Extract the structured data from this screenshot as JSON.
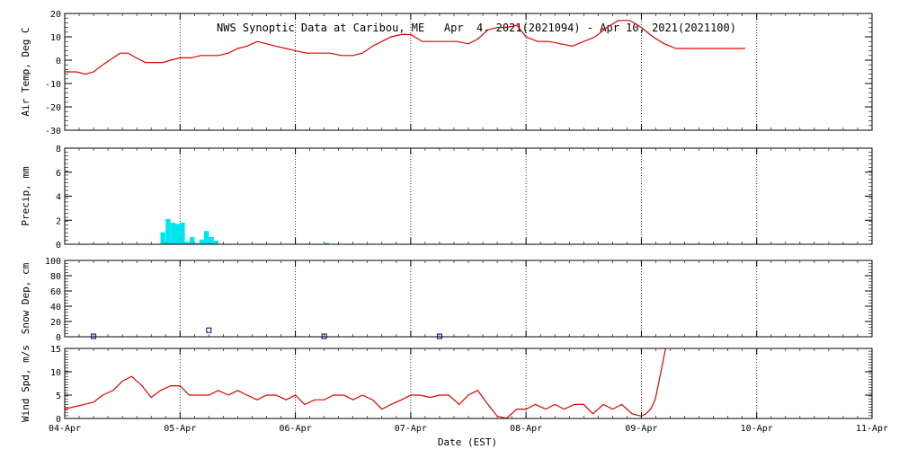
{
  "chart_data": {
    "title": "NWS Synoptic Data at Caribou, ME   Apr  4, 2021(2021094) - Apr 10, 2021(2021100)",
    "xlabel": "Date (EST)",
    "x_ticks": [
      "04-Apr",
      "05-Apr",
      "06-Apr",
      "07-Apr",
      "08-Apr",
      "09-Apr",
      "10-Apr",
      "11-Apr"
    ],
    "x_range_days": [
      0,
      7
    ],
    "panels": [
      {
        "type": "line",
        "ylabel": "Air Temp, Deg C",
        "ylim": [
          -30,
          20
        ],
        "y_ticks": [
          20,
          10,
          0,
          -10,
          -20,
          -30
        ],
        "color": "#e00000",
        "x": [
          0.0,
          0.1,
          0.18,
          0.25,
          0.33,
          0.42,
          0.48,
          0.55,
          0.62,
          0.7,
          0.78,
          0.85,
          0.92,
          1.0,
          1.1,
          1.18,
          1.25,
          1.33,
          1.42,
          1.5,
          1.58,
          1.67,
          1.75,
          1.83,
          1.92,
          2.0,
          2.1,
          2.2,
          2.3,
          2.4,
          2.5,
          2.58,
          2.67,
          2.75,
          2.83,
          2.92,
          3.0,
          3.1,
          3.2,
          3.3,
          3.4,
          3.5,
          3.58,
          3.67,
          3.75,
          3.83,
          3.92,
          4.0,
          4.1,
          4.2,
          4.3,
          4.4,
          4.5,
          4.6,
          4.7,
          4.8,
          4.9,
          5.0,
          5.1,
          5.2,
          5.3,
          5.4,
          5.5,
          5.6,
          5.7,
          5.8,
          5.9
        ],
        "y": [
          -5,
          -5,
          -6,
          -5,
          -2,
          1,
          3,
          3,
          1,
          -1,
          -1,
          -1,
          0,
          1,
          1,
          2,
          2,
          2,
          3,
          5,
          6,
          8,
          7,
          6,
          5,
          4,
          3,
          3,
          3,
          2,
          2,
          3,
          6,
          8,
          10,
          11,
          11,
          8,
          8,
          8,
          8,
          7,
          9,
          13,
          14,
          14,
          15,
          10,
          8,
          8,
          7,
          6,
          8,
          10,
          14,
          17,
          17,
          14,
          10,
          7,
          5,
          5,
          5,
          5,
          5,
          5,
          5
        ]
      },
      {
        "type": "bar",
        "ylabel": "Precip, mm",
        "ylim": [
          0,
          8
        ],
        "y_ticks": [
          8,
          6,
          4,
          2,
          0
        ],
        "color": "#00e5ee",
        "bar_width_days": 0.042,
        "x": [
          0.83,
          0.875,
          0.917,
          0.958,
          1.0,
          1.042,
          1.083,
          1.125,
          1.167,
          1.208,
          1.25,
          1.292,
          1.333,
          1.375,
          1.417,
          1.458,
          1.5,
          1.542,
          1.583,
          1.625,
          1.667,
          1.708,
          1.75,
          1.792,
          1.833,
          1.875,
          1.917,
          1.958,
          2.0,
          2.042,
          2.083,
          2.125,
          2.167,
          2.208,
          2.25,
          2.292,
          2.333,
          2.375,
          2.417,
          2.458,
          2.5
        ],
        "values": [
          1.0,
          2.1,
          1.8,
          1.7,
          1.8,
          0.2,
          0.6,
          0.1,
          0.4,
          1.1,
          0.6,
          0.3,
          0,
          0,
          0,
          0,
          0,
          0,
          0,
          0,
          0,
          0,
          0,
          0,
          0,
          0,
          0,
          0,
          0,
          0,
          0,
          0,
          0,
          0,
          0.1,
          0,
          0,
          0,
          0,
          0,
          0
        ]
      },
      {
        "type": "scatter",
        "ylabel": "Snow Dep, cm",
        "ylim": [
          0,
          100
        ],
        "y_ticks": [
          100,
          80,
          60,
          40,
          20,
          0
        ],
        "color": "#00008b",
        "x": [
          0.25,
          1.25,
          2.25,
          3.25
        ],
        "y": [
          0,
          8,
          0,
          0
        ]
      },
      {
        "type": "line",
        "ylabel": "Wind Spd, m/s",
        "ylim": [
          0,
          15
        ],
        "y_ticks": [
          15,
          10,
          5,
          0
        ],
        "color": "#e00000",
        "x": [
          0.0,
          0.08,
          0.17,
          0.25,
          0.33,
          0.42,
          0.5,
          0.58,
          0.67,
          0.75,
          0.83,
          0.92,
          1.0,
          1.08,
          1.17,
          1.25,
          1.33,
          1.42,
          1.5,
          1.58,
          1.67,
          1.75,
          1.83,
          1.92,
          2.0,
          2.08,
          2.17,
          2.25,
          2.33,
          2.42,
          2.5,
          2.58,
          2.67,
          2.75,
          2.83,
          2.92,
          3.0,
          3.08,
          3.17,
          3.25,
          3.33,
          3.42,
          3.5,
          3.58,
          3.67,
          3.75,
          3.83,
          3.92,
          4.0,
          4.08,
          4.17,
          4.25,
          4.33,
          4.42,
          4.5,
          4.58,
          4.67,
          4.75,
          4.83,
          4.92,
          5.0,
          5.04,
          5.08,
          5.12,
          5.17,
          5.21
        ],
        "y": [
          2,
          2.5,
          3,
          3.5,
          5,
          6,
          8,
          9,
          7,
          4.5,
          6,
          7,
          7,
          5,
          5,
          5,
          6,
          5,
          6,
          5,
          4,
          5,
          5,
          4,
          5,
          3,
          4,
          4,
          5,
          5,
          4,
          5,
          4,
          2,
          3,
          4,
          5,
          5,
          4.5,
          5,
          5,
          3,
          5,
          6,
          3,
          0.5,
          0,
          2,
          2,
          3,
          2,
          3,
          2,
          3,
          3,
          1,
          3,
          2,
          3,
          1,
          0.5,
          1,
          2,
          4,
          10,
          15
        ]
      }
    ]
  }
}
